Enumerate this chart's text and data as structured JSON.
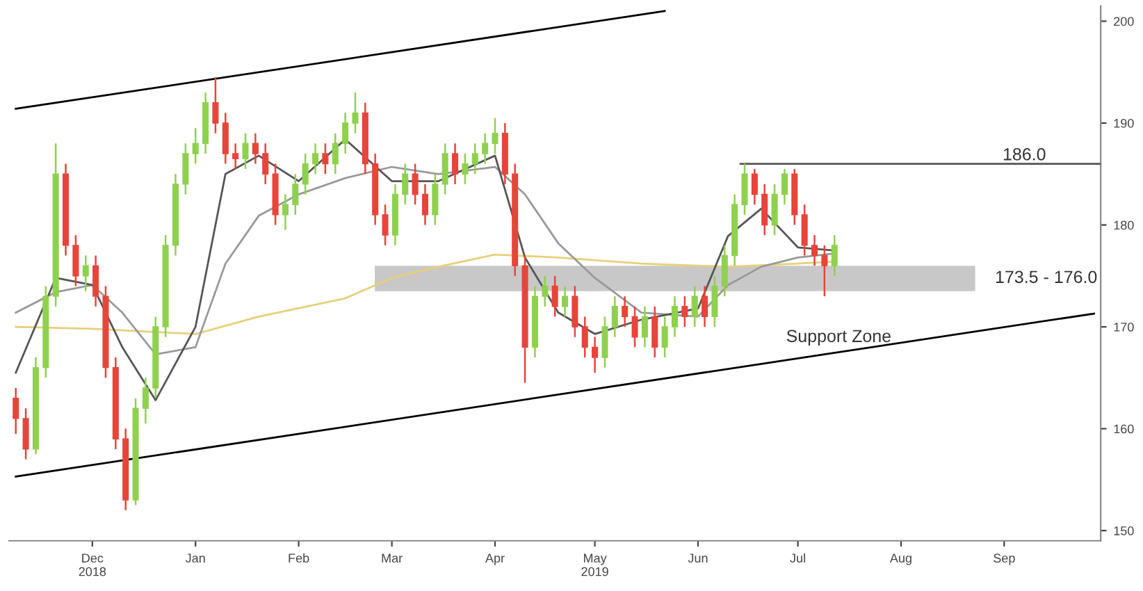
{
  "chart_data": {
    "type": "candlestick",
    "xlim": [
      "2018-11-06",
      "2019-09-30"
    ],
    "xticks": [
      {
        "value": "2018-12-01",
        "label": "Dec\n2018"
      },
      {
        "value": "2019-01-01",
        "label": "Jan"
      },
      {
        "value": "2019-02-01",
        "label": "Feb"
      },
      {
        "value": "2019-03-01",
        "label": "Mar"
      },
      {
        "value": "2019-04-01",
        "label": "Apr"
      },
      {
        "value": "2019-05-01",
        "label": "May\n2019"
      },
      {
        "value": "2019-06-01",
        "label": "Jun"
      },
      {
        "value": "2019-07-01",
        "label": "Jul"
      },
      {
        "value": "2019-08-01",
        "label": "Aug"
      },
      {
        "value": "2019-09-01",
        "label": "Sep"
      }
    ],
    "ylim": [
      149,
      201.5
    ],
    "yticks": [
      150,
      160,
      170,
      180,
      190,
      200
    ],
    "grid": false,
    "bands": [
      {
        "axis": "y",
        "from": 173.5,
        "to": 176,
        "label": "173.5 - 176.0",
        "color": "#c8c8c8"
      }
    ],
    "ref_lines": [
      {
        "axis": "y",
        "value": 186.0,
        "label": "186.0",
        "color": "#555555"
      }
    ],
    "series": [
      {
        "type": "line",
        "color": "#e8cf7a",
        "x": [
          "2018-11-08",
          "2018-12-01",
          "2019-01-01",
          "2019-01-20",
          "2019-02-15",
          "2019-03-01",
          "2019-03-15",
          "2019-04-01",
          "2019-04-20",
          "2019-05-15",
          "2019-06-10",
          "2019-07-01",
          "2019-07-12"
        ],
        "values": [
          170.0,
          169.8,
          169.3,
          171.0,
          172.8,
          174.8,
          175.9,
          177.1,
          176.8,
          176.2,
          175.9,
          176.2,
          176.4
        ]
      },
      {
        "type": "line",
        "color": "#999999",
        "x": [
          "2018-11-08",
          "2018-11-20",
          "2018-12-01",
          "2018-12-10",
          "2018-12-20",
          "2019-01-01",
          "2019-01-10",
          "2019-01-20",
          "2019-02-01",
          "2019-02-15",
          "2019-03-01",
          "2019-03-15",
          "2019-04-01",
          "2019-04-10",
          "2019-04-20",
          "2019-05-01",
          "2019-05-15",
          "2019-06-01",
          "2019-06-10",
          "2019-06-20",
          "2019-07-01",
          "2019-07-12"
        ],
        "values": [
          171.4,
          173.4,
          174.1,
          171.4,
          167.3,
          168.0,
          176.2,
          180.9,
          183.0,
          184.6,
          185.7,
          185.0,
          185.7,
          183.0,
          178.2,
          174.8,
          171.4,
          171.0,
          174.1,
          175.9,
          176.8,
          177.2
        ]
      },
      {
        "type": "line",
        "color": "#555555",
        "x": [
          "2018-11-08",
          "2018-11-20",
          "2018-12-01",
          "2018-12-10",
          "2018-12-20",
          "2019-01-01",
          "2019-01-10",
          "2019-01-20",
          "2019-02-01",
          "2019-02-15",
          "2019-03-01",
          "2019-03-15",
          "2019-04-01",
          "2019-04-10",
          "2019-04-20",
          "2019-05-01",
          "2019-05-15",
          "2019-06-01",
          "2019-06-10",
          "2019-06-20",
          "2019-07-01",
          "2019-07-12"
        ],
        "values": [
          165.5,
          174.8,
          174.1,
          168.0,
          162.8,
          170.0,
          185.0,
          186.8,
          184.3,
          188.4,
          184.3,
          184.3,
          186.8,
          176.8,
          171.4,
          169.3,
          170.7,
          171.8,
          178.9,
          181.6,
          177.8,
          177.5
        ]
      },
      {
        "type": "line",
        "color": "#000000",
        "x": [
          "2018-11-08",
          "2019-05-22"
        ],
        "values": [
          191.4,
          201.0
        ]
      },
      {
        "type": "line",
        "color": "#000000",
        "x": [
          "2018-11-08",
          "2019-09-28"
        ],
        "values": [
          155.3,
          171.3
        ]
      },
      {
        "color": "#8fd14f",
        "x": [
          "2018-11-14",
          "2018-11-17",
          "2018-11-20",
          "2018-11-29",
          "2018-12-14",
          "2018-12-17",
          "2018-12-20",
          "2018-12-23",
          "2018-12-26",
          "2018-12-29",
          "2019-01-01",
          "2019-01-04",
          "2019-01-16",
          "2019-01-28",
          "2019-01-31",
          "2019-02-03",
          "2019-02-06",
          "2019-02-12",
          "2019-02-15",
          "2019-02-18",
          "2019-03-02",
          "2019-03-05",
          "2019-03-14",
          "2019-03-17",
          "2019-03-23",
          "2019-03-26",
          "2019-03-29",
          "2019-04-01",
          "2019-04-13",
          "2019-04-16",
          "2019-04-22",
          "2019-05-04",
          "2019-05-07",
          "2019-05-16",
          "2019-05-22",
          "2019-05-25",
          "2019-05-31",
          "2019-06-06",
          "2019-06-09",
          "2019-06-12",
          "2019-06-15",
          "2019-06-24",
          "2019-06-27",
          "2019-07-12"
        ],
        "ohlc": [
          [
            158,
            167,
            157.5,
            166
          ],
          [
            166,
            174,
            165,
            173
          ],
          [
            173,
            188,
            172,
            185
          ],
          [
            175,
            177,
            173.5,
            176
          ],
          [
            153,
            163,
            152.5,
            162
          ],
          [
            162,
            165,
            160.5,
            164
          ],
          [
            164,
            171,
            163,
            170
          ],
          [
            170,
            179,
            169,
            178
          ],
          [
            178,
            185,
            177,
            184
          ],
          [
            184,
            188,
            183,
            187
          ],
          [
            187,
            189.5,
            186,
            188
          ],
          [
            188,
            193,
            187,
            192
          ],
          [
            186.5,
            189,
            185.5,
            188
          ],
          [
            181,
            183,
            179.5,
            182
          ],
          [
            182,
            185,
            181,
            184
          ],
          [
            184,
            187,
            183,
            186
          ],
          [
            186,
            188,
            185,
            187
          ],
          [
            186,
            189,
            185,
            188
          ],
          [
            188,
            191,
            187,
            190
          ],
          [
            190,
            193,
            189,
            191
          ],
          [
            179,
            184,
            178,
            183
          ],
          [
            183,
            186,
            182,
            185
          ],
          [
            181,
            185,
            180,
            184
          ],
          [
            184,
            188,
            183,
            187
          ],
          [
            185,
            187,
            184,
            186
          ],
          [
            186,
            188,
            185,
            187
          ],
          [
            187,
            189,
            186,
            188
          ],
          [
            188,
            190.5,
            187,
            189
          ],
          [
            168,
            174,
            167,
            173
          ],
          [
            173,
            175,
            172,
            174
          ],
          [
            172,
            174,
            171,
            173
          ],
          [
            167,
            171,
            166,
            170
          ],
          [
            170,
            173,
            169,
            172
          ],
          [
            169,
            172,
            168,
            171
          ],
          [
            168,
            171,
            167,
            170
          ],
          [
            170,
            173,
            169,
            172
          ],
          [
            171,
            174,
            170,
            173
          ],
          [
            171,
            175,
            170,
            174
          ],
          [
            174,
            178,
            173,
            177
          ],
          [
            177,
            183,
            176,
            182
          ],
          [
            182,
            186,
            181,
            185
          ],
          [
            180,
            184,
            179,
            183
          ],
          [
            183,
            185.5,
            182,
            185
          ],
          [
            176,
            179,
            175,
            178
          ]
        ]
      },
      {
        "color": "#e8443a",
        "x": [
          "2018-11-08",
          "2018-11-11",
          "2018-11-23",
          "2018-11-26",
          "2018-12-02",
          "2018-12-05",
          "2018-12-08",
          "2018-12-11",
          "2019-01-07",
          "2019-01-10",
          "2019-01-13",
          "2019-01-19",
          "2019-01-22",
          "2019-01-25",
          "2019-02-09",
          "2019-02-21",
          "2019-02-24",
          "2019-02-27",
          "2019-03-08",
          "2019-03-11",
          "2019-03-20",
          "2019-04-04",
          "2019-04-07",
          "2019-04-10",
          "2019-04-19",
          "2019-04-25",
          "2019-04-28",
          "2019-05-01",
          "2019-05-10",
          "2019-05-13",
          "2019-05-19",
          "2019-05-28",
          "2019-06-03",
          "2019-06-18",
          "2019-06-21",
          "2019-06-30",
          "2019-07-03",
          "2019-07-06",
          "2019-07-09"
        ],
        "ohlc": [
          [
            163,
            164,
            159.5,
            161
          ],
          [
            161,
            162,
            157,
            158
          ],
          [
            185,
            186,
            177,
            178
          ],
          [
            178,
            179,
            174,
            175
          ],
          [
            176,
            177,
            172,
            173
          ],
          [
            173,
            174,
            165,
            166
          ],
          [
            166,
            167,
            158,
            159
          ],
          [
            159,
            160,
            152,
            153
          ],
          [
            192,
            194.5,
            189,
            190
          ],
          [
            190,
            191,
            186,
            187
          ],
          [
            187,
            188,
            185.5,
            186.5
          ],
          [
            188,
            189,
            186,
            187
          ],
          [
            187,
            188,
            184,
            185
          ],
          [
            185,
            186,
            180,
            181
          ],
          [
            187,
            188,
            185,
            186
          ],
          [
            191,
            192,
            185,
            186
          ],
          [
            186,
            187,
            180,
            181
          ],
          [
            181,
            182,
            178,
            179
          ],
          [
            185,
            186,
            182,
            183
          ],
          [
            183,
            184,
            180,
            181
          ],
          [
            187,
            188,
            184,
            185
          ],
          [
            189,
            190,
            184,
            185
          ],
          [
            185,
            186,
            175,
            176
          ],
          [
            176,
            177,
            164.5,
            168
          ],
          [
            174,
            175,
            171,
            172
          ],
          [
            173,
            174,
            169,
            170
          ],
          [
            170,
            171,
            167,
            168
          ],
          [
            168,
            169,
            165.5,
            167
          ],
          [
            172,
            173,
            170,
            171
          ],
          [
            171,
            172,
            168,
            169
          ],
          [
            171,
            172,
            167,
            168
          ],
          [
            172,
            173,
            170,
            171
          ],
          [
            173,
            174,
            170,
            171
          ],
          [
            185,
            185.5,
            182,
            183
          ],
          [
            183,
            184,
            179,
            180
          ],
          [
            185,
            185.5,
            180,
            181
          ],
          [
            181,
            182,
            177,
            178
          ],
          [
            178,
            179,
            176,
            177
          ],
          [
            177,
            178,
            173,
            176
          ]
        ]
      }
    ],
    "annotations": [
      "Support Zone"
    ]
  }
}
